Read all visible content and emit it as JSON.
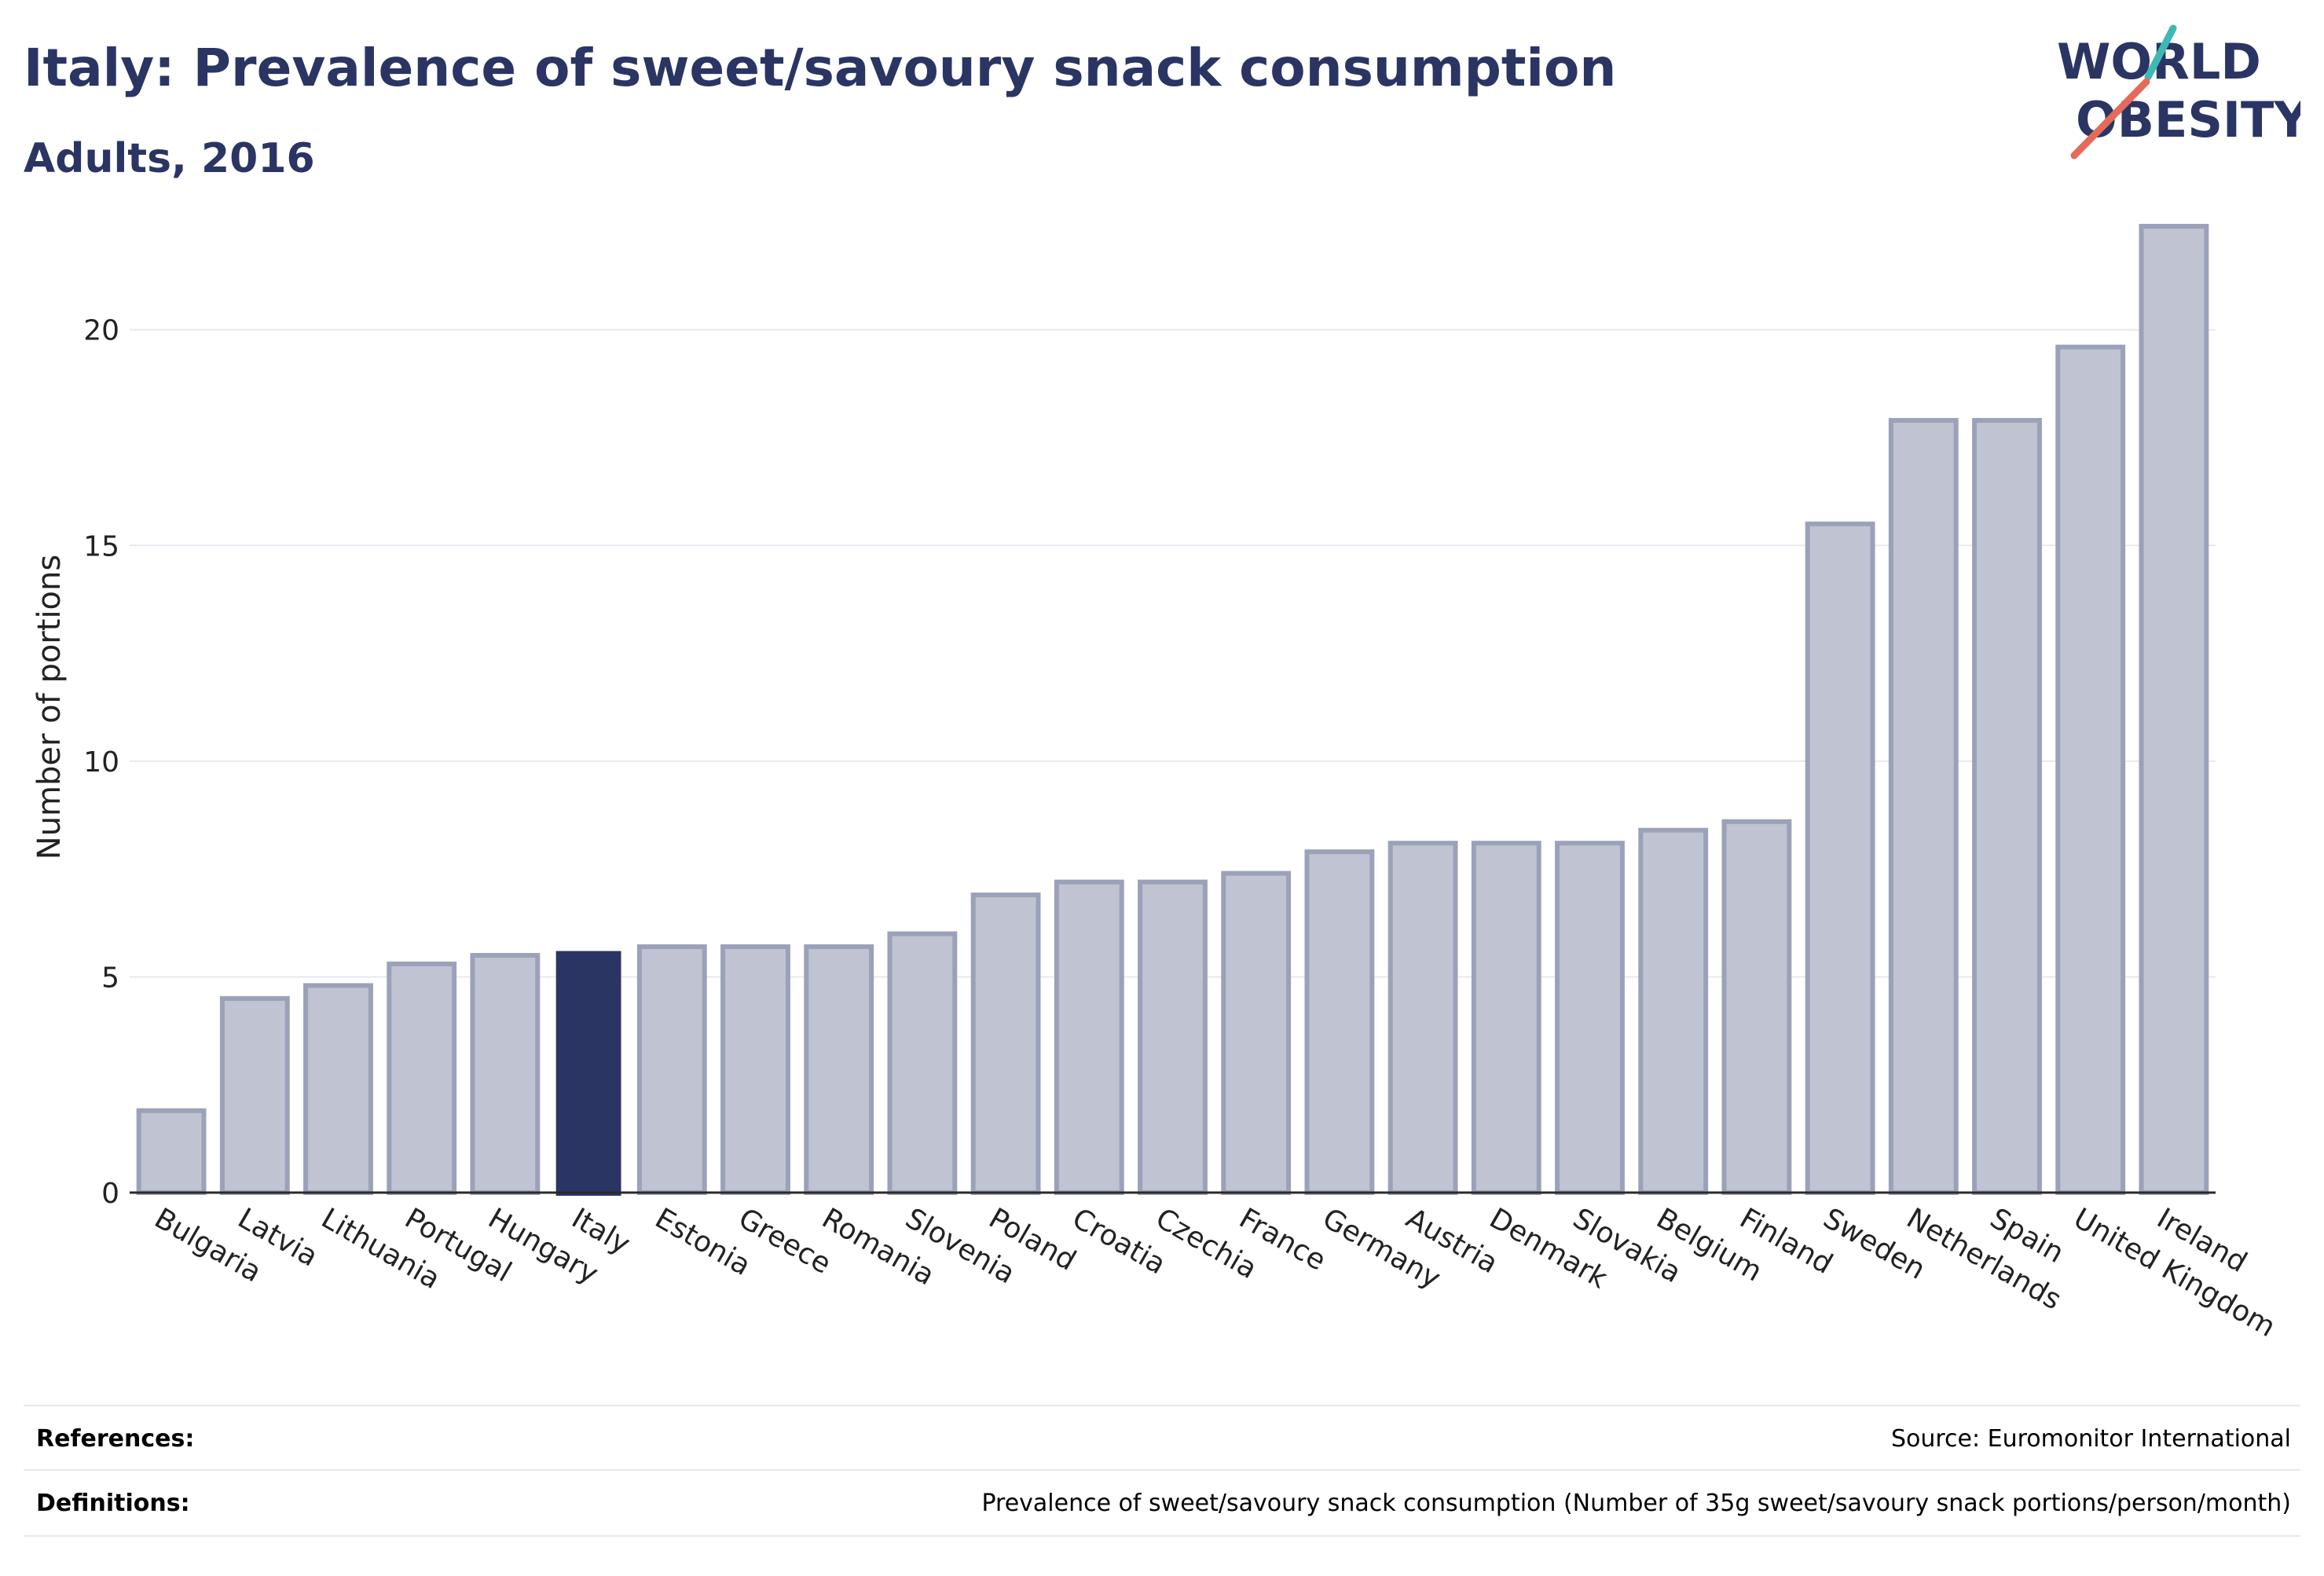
{
  "header": {
    "title": "Italy: Prevalence of sweet/savoury snack consumption",
    "subtitle": "Adults, 2016"
  },
  "logo": {
    "line1": "WORLD",
    "line2": "OBESITY",
    "colors": {
      "text": "#2a3564",
      "slash_top": "#3fb8b4",
      "slash_bottom": "#e46b5a"
    }
  },
  "colors": {
    "bar_default": "#c0c3d1",
    "bar_border": "#9ba1b8",
    "bar_highlight": "#2a3564",
    "grid": "#e6e9f0",
    "axis": "#2a2a2a"
  },
  "chart_data": {
    "type": "bar",
    "title": "Italy: Prevalence of sweet/savoury snack consumption",
    "subtitle": "Adults, 2016",
    "xlabel": "",
    "ylabel": "Number of portions",
    "ylim": [
      0,
      23
    ],
    "yticks": [
      0,
      5,
      10,
      15,
      20
    ],
    "grid": true,
    "highlight": "Italy",
    "categories": [
      "Bulgaria",
      "Latvia",
      "Lithuania",
      "Portugal",
      "Hungary",
      "Italy",
      "Estonia",
      "Greece",
      "Romania",
      "Slovenia",
      "Poland",
      "Croatia",
      "Czechia",
      "France",
      "Germany",
      "Austria",
      "Denmark",
      "Slovakia",
      "Belgium",
      "Finland",
      "Sweden",
      "Netherlands",
      "Spain",
      "United Kingdom",
      "Ireland"
    ],
    "values": [
      1.9,
      4.5,
      4.8,
      5.3,
      5.5,
      5.6,
      5.7,
      5.7,
      5.7,
      6.0,
      6.9,
      7.2,
      7.2,
      7.4,
      7.9,
      8.1,
      8.1,
      8.1,
      8.4,
      8.6,
      15.5,
      17.9,
      17.9,
      19.6,
      22.4
    ]
  },
  "footer": {
    "references_label": "References:",
    "references_value": "Source: Euromonitor International",
    "definitions_label": "Definitions:",
    "definitions_value": "Prevalence of sweet/savoury snack consumption (Number of 35g sweet/savoury snack portions/person/month)"
  }
}
